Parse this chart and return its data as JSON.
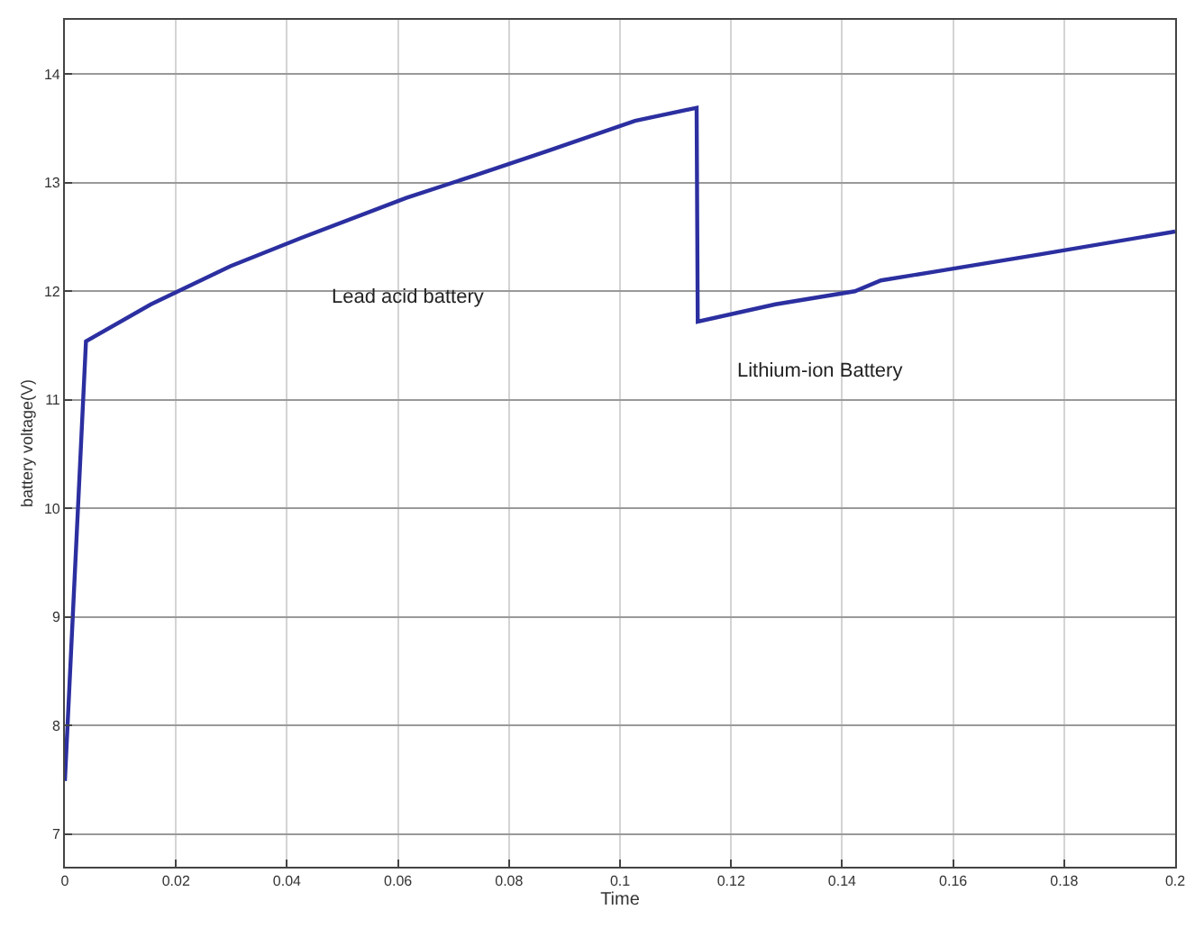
{
  "chart_data": {
    "type": "line",
    "xlabel": "Time",
    "ylabel": "battery voltage(V)",
    "color": "#2b2fa0",
    "x": [
      0,
      0.0038,
      0.0155,
      0.0298,
      0.0425,
      0.0615,
      0.074,
      0.0868,
      0.1027,
      0.1138,
      0.114,
      0.128,
      0.1423,
      0.147,
      0.1566,
      0.1756,
      0.2
    ],
    "values": [
      7.49,
      11.54,
      11.88,
      12.23,
      12.49,
      12.86,
      13.07,
      13.29,
      13.57,
      13.69,
      11.72,
      11.88,
      12.0,
      12.1,
      12.18,
      12.34,
      12.55
    ],
    "xlim": [
      0,
      0.2
    ],
    "xticks": [
      0,
      0.02,
      0.04,
      0.06,
      0.08,
      0.1,
      0.12,
      0.14,
      0.16,
      0.18,
      0.2
    ],
    "ylim": [
      6.7,
      14.5
    ],
    "yticks": [
      7,
      8,
      9,
      10,
      11,
      12,
      13,
      14
    ],
    "grid": true,
    "marker": "none",
    "line_style": "solid",
    "annotations": [
      "Lead acid battery",
      "Lithium-ion Battery"
    ]
  }
}
